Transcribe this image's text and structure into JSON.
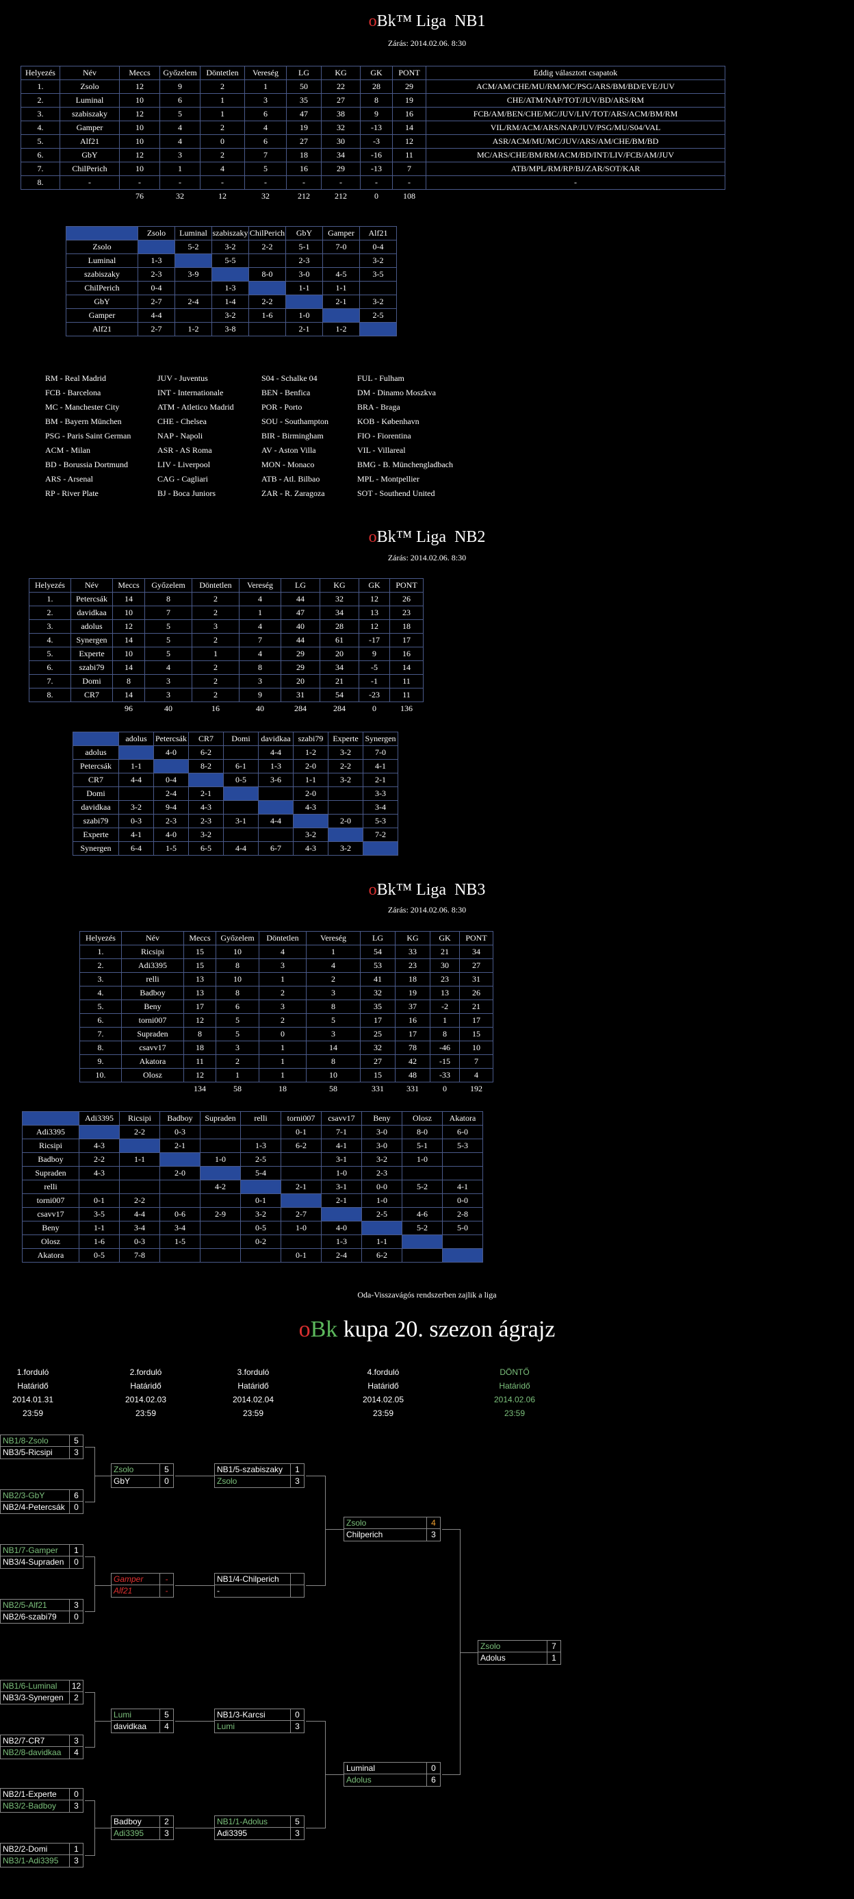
{
  "nb1": {
    "title_prefix": "o",
    "title_brand": "Bk™ Liga",
    "title_level": "NB1",
    "closing": "Zárás: 2014.02.06. 8:30",
    "headers": [
      "Helyezés",
      "Név",
      "Meccs",
      "Győzelem",
      "Döntetlen",
      "Vereség",
      "LG",
      "KG",
      "GK",
      "PONT",
      "Eddig választott csapatok"
    ],
    "rows": [
      [
        "1.",
        "Zsolo",
        "12",
        "9",
        "2",
        "1",
        "50",
        "22",
        "28",
        "29",
        "ACM/AM/CHE/MU/RM/MC/PSG/ARS/BM/BD/EVE/JUV"
      ],
      [
        "2.",
        "Luminal",
        "10",
        "6",
        "1",
        "3",
        "35",
        "27",
        "8",
        "19",
        "CHE/ATM/NAP/TOT/JUV/BD/ARS/RM"
      ],
      [
        "3.",
        "szabiszaky",
        "12",
        "5",
        "1",
        "6",
        "47",
        "38",
        "9",
        "16",
        "FCB/AM/BEN/CHE/MC/JUV/LIV/TOT/ARS/ACM/BM/RM"
      ],
      [
        "4.",
        "Gamper",
        "10",
        "4",
        "2",
        "4",
        "19",
        "32",
        "-13",
        "14",
        "VIL/RM/ACM/ARS/NAP/JUV/PSG/MU/S04/VAL"
      ],
      [
        "5.",
        "Alf21",
        "10",
        "4",
        "0",
        "6",
        "27",
        "30",
        "-3",
        "12",
        "ASR/ACM/MU/MC/JUV/ARS/AM/CHE/BM/BD"
      ],
      [
        "6.",
        "GbY",
        "12",
        "3",
        "2",
        "7",
        "18",
        "34",
        "-16",
        "11",
        "MC/ARS/CHE/BM/RM/ACM/BD/INT/LIV/FCB/AM/JUV"
      ],
      [
        "7.",
        "ChilPerich",
        "10",
        "1",
        "4",
        "5",
        "16",
        "29",
        "-13",
        "7",
        "ATB/MPL/RM/RP/BJ/ZAR/SOT/KAR"
      ],
      [
        "8.",
        "-",
        "-",
        "-",
        "-",
        "-",
        "-",
        "-",
        "-",
        "-",
        "-"
      ]
    ],
    "totals": [
      "",
      "",
      "76",
      "32",
      "12",
      "32",
      "212",
      "212",
      "0",
      "108",
      ""
    ],
    "matrix": {
      "cols": [
        "Zsolo",
        "Luminal",
        "szabiszaky",
        "ChilPerich",
        "GbY",
        "Gamper",
        "Alf21"
      ],
      "rows": [
        [
          "Zsolo",
          "",
          "5-2",
          "3-2",
          "2-2",
          "5-1",
          "7-0",
          "0-4"
        ],
        [
          "Luminal",
          "1-3",
          "",
          "5-5",
          "",
          "2-3",
          "",
          "3-2"
        ],
        [
          "szabiszaky",
          "2-3",
          "3-9",
          "",
          "8-0",
          "3-0",
          "4-5",
          "3-5"
        ],
        [
          "ChilPerich",
          "0-4",
          "",
          "1-3",
          "",
          "1-1",
          "1-1",
          ""
        ],
        [
          "GbY",
          "2-7",
          "2-4",
          "1-4",
          "2-2",
          "",
          "2-1",
          "3-2"
        ],
        [
          "Gamper",
          "4-4",
          "",
          "3-2",
          "1-6",
          "1-0",
          "",
          "2-5"
        ],
        [
          "Alf21",
          "2-7",
          "1-2",
          "3-8",
          "",
          "2-1",
          "1-2",
          ""
        ]
      ]
    }
  },
  "abbreviations": [
    [
      "RM - Real Madrid",
      "FCB - Barcelona",
      "MC - Manchester City",
      "BM - Bayern München",
      "PSG - Paris Saint German",
      "ACM - Milan",
      "BD - Borussia Dortmund",
      "ARS - Arsenal",
      "RP - River Plate"
    ],
    [
      "JUV - Juventus",
      "INT - Internationale",
      "ATM - Atletico Madrid",
      "CHE - Chelsea",
      "NAP - Napoli",
      "ASR - AS Roma",
      "LIV - Liverpool",
      "CAG - Cagliari",
      "BJ - Boca Juniors"
    ],
    [
      "S04 - Schalke 04",
      "BEN - Benfica",
      "POR - Porto",
      "SOU - Southampton",
      "BIR - Birmingham",
      "AV - Aston Villa",
      "MON - Monaco",
      "ATB - Atl. Bilbao",
      "ZAR - R. Zaragoza"
    ],
    [
      "FUL - Fulham",
      "DM - Dinamo Moszkva",
      "BRA - Braga",
      "KOB - København",
      "FIO - Fiorentina",
      "VIL - Villareal",
      "BMG - B. Münchengladbach",
      "MPL - Montpellier",
      "SOT - Southend United"
    ]
  ],
  "nb2": {
    "title_prefix": "o",
    "title_brand": "Bk™ Liga",
    "title_level": "NB2",
    "closing": "Zárás: 2014.02.06. 8:30",
    "headers": [
      "Helyezés",
      "Név",
      "Meccs",
      "Győzelem",
      "Döntetlen",
      "Vereség",
      "LG",
      "KG",
      "GK",
      "PONT"
    ],
    "rows": [
      [
        "1.",
        "Petercsák",
        "14",
        "8",
        "2",
        "4",
        "44",
        "32",
        "12",
        "26"
      ],
      [
        "2.",
        "davidkaa",
        "10",
        "7",
        "2",
        "1",
        "47",
        "34",
        "13",
        "23"
      ],
      [
        "3.",
        "adolus",
        "12",
        "5",
        "3",
        "4",
        "40",
        "28",
        "12",
        "18"
      ],
      [
        "4.",
        "Synergen",
        "14",
        "5",
        "2",
        "7",
        "44",
        "61",
        "-17",
        "17"
      ],
      [
        "5.",
        "Experte",
        "10",
        "5",
        "1",
        "4",
        "29",
        "20",
        "9",
        "16"
      ],
      [
        "6.",
        "szabi79",
        "14",
        "4",
        "2",
        "8",
        "29",
        "34",
        "-5",
        "14"
      ],
      [
        "7.",
        "Domi",
        "8",
        "3",
        "2",
        "3",
        "20",
        "21",
        "-1",
        "11"
      ],
      [
        "8.",
        "CR7",
        "14",
        "3",
        "2",
        "9",
        "31",
        "54",
        "-23",
        "11"
      ]
    ],
    "totals": [
      "",
      "",
      "96",
      "40",
      "16",
      "40",
      "284",
      "284",
      "0",
      "136"
    ],
    "matrix": {
      "cols": [
        "adolus",
        "Petercsák",
        "CR7",
        "Domi",
        "davidkaa",
        "szabi79",
        "Experte",
        "Synergen"
      ],
      "rows": [
        [
          "adolus",
          "",
          "4-0",
          "6-2",
          "",
          "4-4",
          "1-2",
          "3-2",
          "7-0"
        ],
        [
          "Petercsák",
          "1-1",
          "",
          "8-2",
          "6-1",
          "1-3",
          "2-0",
          "2-2",
          "4-1"
        ],
        [
          "CR7",
          "4-4",
          "0-4",
          "",
          "0-5",
          "3-6",
          "1-1",
          "3-2",
          "2-1"
        ],
        [
          "Domi",
          "",
          "2-4",
          "2-1",
          "",
          "",
          "2-0",
          "",
          "3-3"
        ],
        [
          "davidkaa",
          "3-2",
          "9-4",
          "4-3",
          "",
          "",
          "4-3",
          "",
          "3-4"
        ],
        [
          "szabi79",
          "0-3",
          "2-3",
          "2-3",
          "3-1",
          "4-4",
          "",
          "2-0",
          "5-3"
        ],
        [
          "Experte",
          "4-1",
          "4-0",
          "3-2",
          "",
          "",
          "3-2",
          "",
          "7-2"
        ],
        [
          "Synergen",
          "6-4",
          "1-5",
          "6-5",
          "4-4",
          "6-7",
          "4-3",
          "3-2",
          ""
        ]
      ]
    }
  },
  "nb3": {
    "title_prefix": "o",
    "title_brand": "Bk™ Liga",
    "title_level": "NB3",
    "closing": "Zárás: 2014.02.06. 8:30",
    "headers": [
      "Helyezés",
      "Név",
      "Meccs",
      "Győzelem",
      "Döntetlen",
      "Vereség",
      "LG",
      "KG",
      "GK",
      "PONT"
    ],
    "rows": [
      [
        "1.",
        "Ricsipi",
        "15",
        "10",
        "4",
        "1",
        "54",
        "33",
        "21",
        "34"
      ],
      [
        "2.",
        "Adi3395",
        "15",
        "8",
        "3",
        "4",
        "53",
        "23",
        "30",
        "27"
      ],
      [
        "3.",
        "relli",
        "13",
        "10",
        "1",
        "2",
        "41",
        "18",
        "23",
        "31"
      ],
      [
        "4.",
        "Badboy",
        "13",
        "8",
        "2",
        "3",
        "32",
        "19",
        "13",
        "26"
      ],
      [
        "5.",
        "Beny",
        "17",
        "6",
        "3",
        "8",
        "35",
        "37",
        "-2",
        "21"
      ],
      [
        "6.",
        "torni007",
        "12",
        "5",
        "2",
        "5",
        "17",
        "16",
        "1",
        "17"
      ],
      [
        "7.",
        "Supraden",
        "8",
        "5",
        "0",
        "3",
        "25",
        "17",
        "8",
        "15"
      ],
      [
        "8.",
        "csavv17",
        "18",
        "3",
        "1",
        "14",
        "32",
        "78",
        "-46",
        "10"
      ],
      [
        "9.",
        "Akatora",
        "11",
        "2",
        "1",
        "8",
        "27",
        "42",
        "-15",
        "7"
      ],
      [
        "10.",
        "Olosz",
        "12",
        "1",
        "1",
        "10",
        "15",
        "48",
        "-33",
        "4"
      ]
    ],
    "totals": [
      "",
      "",
      "134",
      "58",
      "18",
      "58",
      "331",
      "331",
      "0",
      "192"
    ],
    "matrix": {
      "cols": [
        "Adi3395",
        "Ricsipi",
        "Badboy",
        "Supraden",
        "relli",
        "torni007",
        "csavv17",
        "Beny",
        "Olosz",
        "Akatora"
      ],
      "rows": [
        [
          "Adi3395",
          "",
          "2-2",
          "0-3",
          "",
          "",
          "0-1",
          "7-1",
          "3-0",
          "8-0",
          "6-0"
        ],
        [
          "Ricsipi",
          "4-3",
          "",
          "2-1",
          "",
          "1-3",
          "6-2",
          "4-1",
          "3-0",
          "5-1",
          "5-3"
        ],
        [
          "Badboy",
          "2-2",
          "1-1",
          "",
          "1-0",
          "2-5",
          "",
          "3-1",
          "3-2",
          "1-0",
          ""
        ],
        [
          "Supraden",
          "4-3",
          "",
          "2-0",
          "",
          "5-4",
          "",
          "1-0",
          "2-3",
          "",
          ""
        ],
        [
          "relli",
          "",
          "",
          "",
          "4-2",
          "",
          "2-1",
          "3-1",
          "0-0",
          "5-2",
          "4-1"
        ],
        [
          "torni007",
          "0-1",
          "2-2",
          "",
          "",
          "0-1",
          "",
          "2-1",
          "1-0",
          "",
          "0-0"
        ],
        [
          "csavv17",
          "3-5",
          "4-4",
          "0-6",
          "2-9",
          "3-2",
          "2-7",
          "",
          "2-5",
          "4-6",
          "2-8"
        ],
        [
          "Beny",
          "1-1",
          "3-4",
          "3-4",
          "",
          "0-5",
          "1-0",
          "4-0",
          "",
          "5-2",
          "5-0"
        ],
        [
          "Olosz",
          "1-6",
          "0-3",
          "1-5",
          "",
          "0-2",
          "",
          "1-3",
          "1-1",
          "",
          ""
        ],
        [
          "Akatora",
          "0-5",
          "7-8",
          "",
          "",
          "",
          "0-1",
          "2-4",
          "6-2",
          "",
          ""
        ]
      ]
    }
  },
  "note": "Oda-Visszavágós rendszerben zajlik a liga",
  "cup": {
    "title_prefix": "o",
    "title_brand": "Bk",
    "title_rest": " kupa 20. szezon ágrajz",
    "rounds": [
      {
        "name": "1.forduló",
        "label": "Határidő",
        "date": "2014.01.31",
        "time": "23:59"
      },
      {
        "name": "2.forduló",
        "label": "Határidő",
        "date": "2014.02.03",
        "time": "23:59"
      },
      {
        "name": "3.forduló",
        "label": "Határidő",
        "date": "2014.02.04",
        "time": "23:59"
      },
      {
        "name": "4.forduló",
        "label": "Határidő",
        "date": "2014.02.05",
        "time": "23:59"
      },
      {
        "name": "DÖNTŐ",
        "label": "Határidő",
        "date": "2014.02.06",
        "time": "23:59"
      }
    ],
    "r1": [
      [
        [
          "NB1/8-Zsolo",
          "5",
          "grn"
        ],
        [
          "NB3/5-Ricsipi",
          "3",
          ""
        ]
      ],
      [
        [
          "NB2/3-GbY",
          "6",
          "grn"
        ],
        [
          "NB2/4-Petercsák",
          "0",
          ""
        ]
      ],
      [
        [
          "NB1/7-Gamper",
          "1",
          "grn"
        ],
        [
          "NB3/4-Supraden",
          "0",
          ""
        ]
      ],
      [
        [
          "NB2/5-Alf21",
          "3",
          "grn"
        ],
        [
          "NB2/6-szabi79",
          "0",
          ""
        ]
      ],
      [
        [
          "NB1/6-Luminal",
          "12",
          "grn"
        ],
        [
          "NB3/3-Synergen",
          "2",
          ""
        ]
      ],
      [
        [
          "NB2/7-CR7",
          "3",
          ""
        ],
        [
          "NB2/8-davidkaa",
          "4",
          "grn"
        ]
      ],
      [
        [
          "NB2/1-Experte",
          "0",
          ""
        ],
        [
          "NB3/2-Badboy",
          "3",
          "grn"
        ]
      ],
      [
        [
          "NB2/2-Domi",
          "1",
          ""
        ],
        [
          "NB3/1-Adi3395",
          "3",
          "grn"
        ]
      ]
    ],
    "r2": [
      [
        [
          "Zsolo",
          "5",
          "grn"
        ],
        [
          "GbY",
          "0",
          ""
        ]
      ],
      [
        [
          "Gamper",
          "-",
          "red"
        ],
        [
          "Alf21",
          "-",
          "red"
        ]
      ],
      [
        [
          "Lumi",
          "5",
          "grn"
        ],
        [
          "davidkaa",
          "4",
          ""
        ]
      ],
      [
        [
          "Badboy",
          "2",
          ""
        ],
        [
          "Adi3395",
          "3",
          "grn"
        ]
      ]
    ],
    "r3": [
      [
        [
          "NB1/5-szabiszaky",
          "1",
          ""
        ],
        [
          "Zsolo",
          "3",
          "grn"
        ]
      ],
      [
        [
          "NB1/4-Chilperich",
          "",
          ""
        ],
        [
          "-",
          "",
          ""
        ]
      ],
      [
        [
          "NB1/3-Karcsi",
          "0",
          ""
        ],
        [
          "Lumi",
          "3",
          "grn"
        ]
      ],
      [
        [
          "NB1/1-Adolus",
          "5",
          "grn"
        ],
        [
          "Adi3395",
          "3",
          ""
        ]
      ]
    ],
    "r4": [
      [
        [
          "Zsolo",
          "4",
          "grn"
        ],
        [
          "Chilperich",
          "3",
          ""
        ]
      ],
      [
        [
          "Luminal",
          "0",
          ""
        ],
        [
          "Adolus",
          "6",
          "grn"
        ]
      ]
    ],
    "final": [
      [
        "Zsolo",
        "7",
        "grn"
      ],
      [
        "Adolus",
        "1",
        ""
      ]
    ]
  }
}
